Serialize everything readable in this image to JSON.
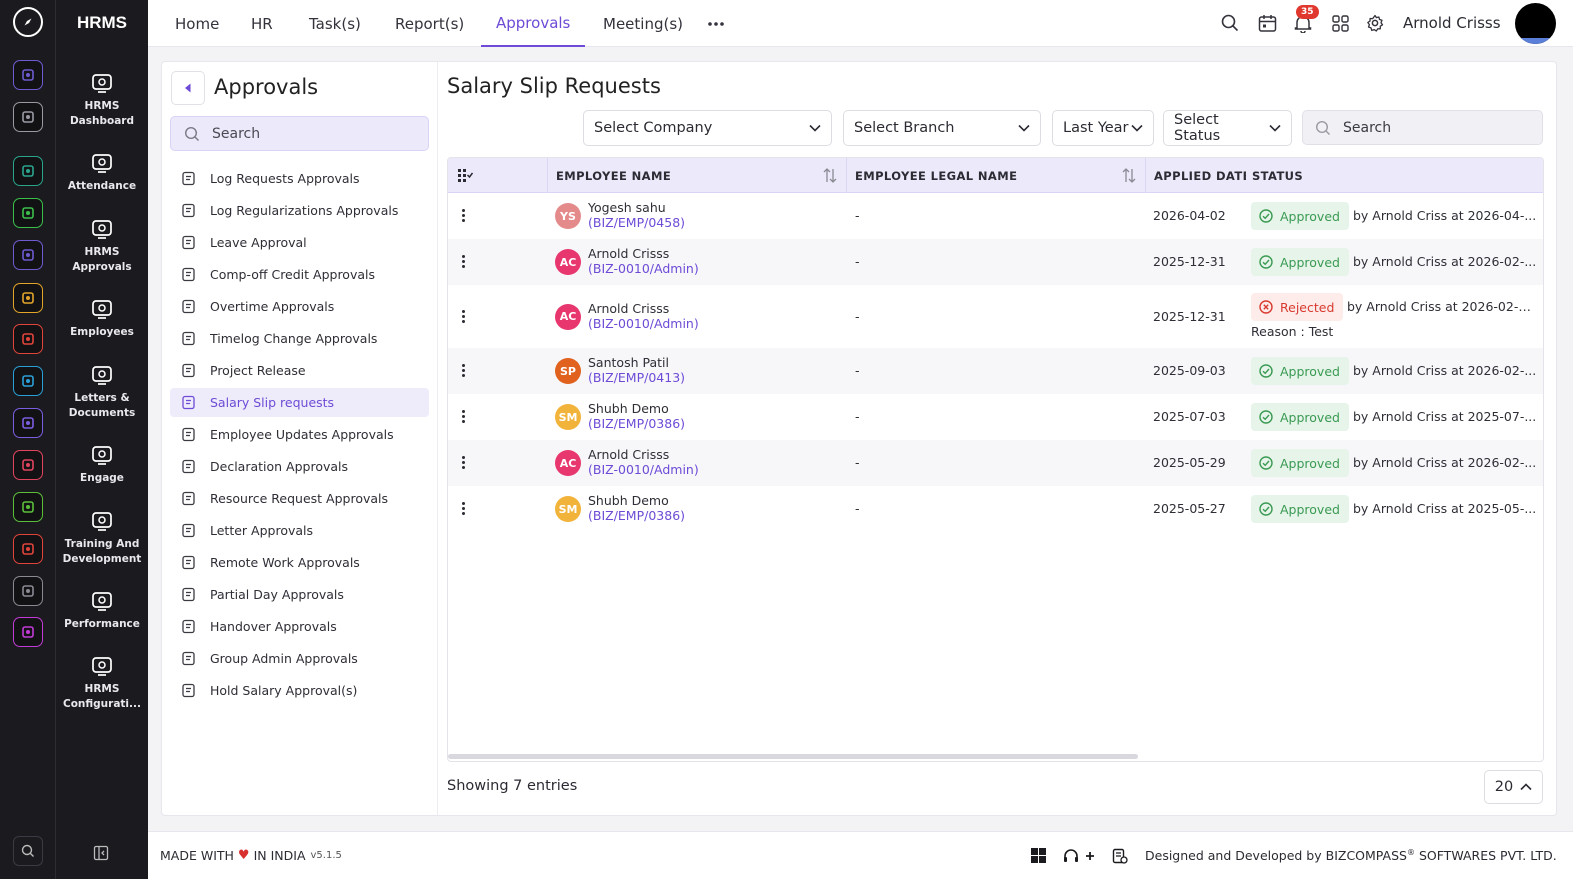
{
  "brand": "HRMS",
  "rail_icons": [
    {
      "name": "home-rail-icon",
      "color": "#6d5bd0"
    },
    {
      "name": "pin-rail-icon",
      "color": "#9a9aa3"
    },
    {
      "name": "team-rail-icon",
      "color": "#2aa58c"
    },
    {
      "name": "money-rail-icon",
      "color": "#3bbf4a"
    },
    {
      "name": "briefcase-rail-icon",
      "color": "#6d5bd0"
    },
    {
      "name": "hands-rail-icon",
      "color": "#e3a42a"
    },
    {
      "name": "target-rail-icon",
      "color": "#e0443a"
    },
    {
      "name": "calendar-rail-icon",
      "color": "#2b9fd8"
    },
    {
      "name": "ship-rail-icon",
      "color": "#7b5de0"
    },
    {
      "name": "presentation-rail-icon",
      "color": "#e0445e"
    },
    {
      "name": "document-rail-icon",
      "color": "#5bbf3a"
    },
    {
      "name": "award-rail-icon",
      "color": "#e0443a"
    },
    {
      "name": "house-rail-icon",
      "color": "#8a8a93"
    },
    {
      "name": "settings-rail-icon",
      "color": "#c23bd6"
    }
  ],
  "modules": [
    {
      "l1": "HRMS",
      "l2": "Dashboard",
      "icon": "dashboard-icon"
    },
    {
      "l1": "Attendance",
      "l2": "",
      "icon": "attendance-icon"
    },
    {
      "l1": "HRMS",
      "l2": "Approvals",
      "icon": "approvals-icon"
    },
    {
      "l1": "Employees",
      "l2": "",
      "icon": "employees-icon"
    },
    {
      "l1": "Letters &",
      "l2": "Documents",
      "icon": "letters-icon"
    },
    {
      "l1": "Engage",
      "l2": "",
      "icon": "engage-icon"
    },
    {
      "l1": "Training And",
      "l2": "Development",
      "icon": "training-icon"
    },
    {
      "l1": "Performance",
      "l2": "",
      "icon": "performance-icon"
    },
    {
      "l1": "HRMS",
      "l2": "Configurati...",
      "icon": "configuration-icon"
    }
  ],
  "topnav": [
    {
      "label": "Home",
      "active": false
    },
    {
      "label": "HR",
      "active": false
    },
    {
      "label": "Task(s)",
      "active": false
    },
    {
      "label": "Report(s)",
      "active": false
    },
    {
      "label": "Approvals",
      "active": true
    },
    {
      "label": "Meeting(s)",
      "active": false
    }
  ],
  "notifications_count": "35",
  "user_name": "Arnold Crisss",
  "left_panel": {
    "title": "Approvals",
    "search_placeholder": "Search",
    "items": [
      "Log Requests Approvals",
      "Log Regularizations Approvals",
      "Leave Approval",
      "Comp-off Credit Approvals",
      "Overtime Approvals",
      "Timelog Change Approvals",
      "Project Release",
      "Salary Slip requests",
      "Employee Updates Approvals",
      "Declaration Approvals",
      "Resource Request Approvals",
      "Letter Approvals",
      "Remote Work Approvals",
      "Partial Day Approvals",
      "Handover Approvals",
      "Group Admin Approvals",
      "Hold Salary Approval(s)"
    ],
    "active_index": 7
  },
  "main": {
    "title": "Salary Slip Requests",
    "filters": {
      "company": "Select Company",
      "branch": "Select Branch",
      "period": "Last Year",
      "status": "Select Status",
      "search_placeholder": "Search"
    },
    "columns": [
      "EMPLOYEE NAME",
      "EMPLOYEE LEGAL NAME",
      "APPLIED DATE",
      "STATUS"
    ],
    "rows": [
      {
        "initials": "YS",
        "avatar_color": "#e58a8a",
        "name": "Yogesh sahu",
        "code": "(BIZ/EMP/0458)",
        "legal": "-",
        "date": "2026-04-02",
        "status": "Approved",
        "by": "by Arnold Criss at 2026-04-...",
        "reason": ""
      },
      {
        "initials": "AC",
        "avatar_color": "#e8366f",
        "name": "Arnold Crisss",
        "code": "(BIZ-0010/Admin)",
        "legal": "-",
        "date": "2025-12-31",
        "status": "Approved",
        "by": "by Arnold Criss at 2026-02-...",
        "reason": ""
      },
      {
        "initials": "AC",
        "avatar_color": "#e8366f",
        "name": "Arnold Crisss",
        "code": "(BIZ-0010/Admin)",
        "legal": "-",
        "date": "2025-12-31",
        "status": "Rejected",
        "by": "by Arnold Criss at 2026-02-1...",
        "reason": "Reason : Test"
      },
      {
        "initials": "SP",
        "avatar_color": "#e0621e",
        "name": "Santosh Patil",
        "code": "(BIZ/EMP/0413)",
        "legal": "-",
        "date": "2025-09-03",
        "status": "Approved",
        "by": "by Arnold Criss at 2026-02-...",
        "reason": ""
      },
      {
        "initials": "SM",
        "avatar_color": "#f2b33a",
        "name": "Shubh Demo",
        "code": "(BIZ/EMP/0386)",
        "legal": "-",
        "date": "2025-07-03",
        "status": "Approved",
        "by": "by Arnold Criss at 2025-07-...",
        "reason": ""
      },
      {
        "initials": "AC",
        "avatar_color": "#e8366f",
        "name": "Arnold Crisss",
        "code": "(BIZ-0010/Admin)",
        "legal": "-",
        "date": "2025-05-29",
        "status": "Approved",
        "by": "by Arnold Criss at 2026-02-...",
        "reason": ""
      },
      {
        "initials": "SM",
        "avatar_color": "#f2b33a",
        "name": "Shubh Demo",
        "code": "(BIZ/EMP/0386)",
        "legal": "-",
        "date": "2025-05-27",
        "status": "Approved",
        "by": "by Arnold Criss at 2025-05-...",
        "reason": ""
      }
    ],
    "showing": "Showing 7 entries",
    "page_size": "20"
  },
  "footer": {
    "made_left": "MADE WITH",
    "made_right": "IN INDIA",
    "version": "v5.1.5",
    "designed": "Designed and Developed by",
    "company": "BIZCOMPASS",
    "reg": "®",
    "company_suffix": " SOFTWARES PVT. LTD."
  },
  "colors": {
    "accent": "#6d4bd6",
    "approved": "#3a9a52",
    "rejected": "#d83a2f",
    "sidebar": "#1b1b1f"
  }
}
